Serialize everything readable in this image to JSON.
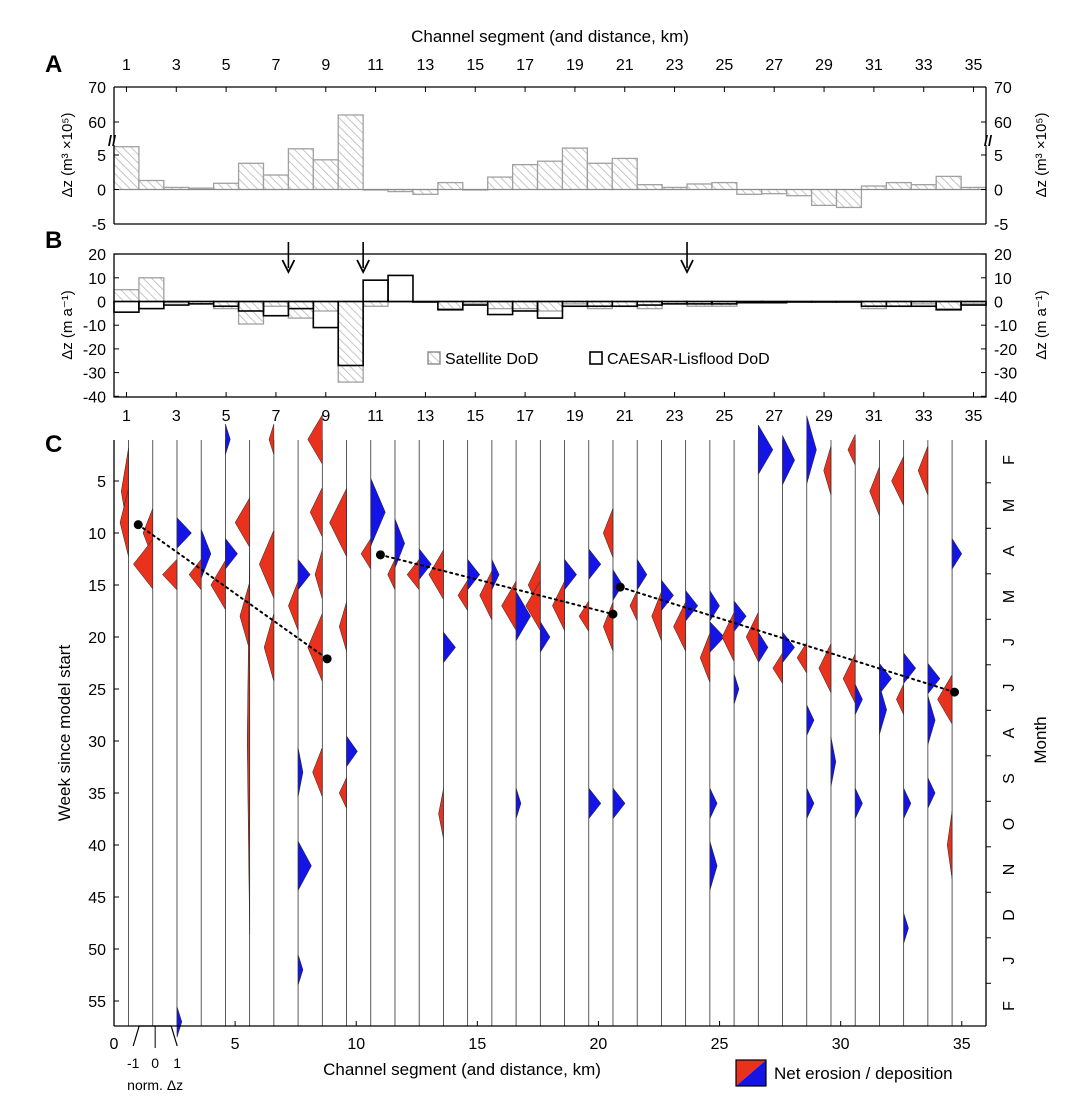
{
  "chart_data": [
    {
      "panel": "A",
      "type": "bar",
      "x_top_label": "Channel segment (and distance, km)",
      "x_ticks": [
        1,
        3,
        5,
        7,
        9,
        11,
        13,
        15,
        17,
        19,
        21,
        23,
        25,
        27,
        29,
        31,
        33,
        35
      ],
      "ylabel_left": "Δz (m³ ×10⁵)",
      "ylabel_right": "Δz (m³ ×10⁵)",
      "y_ticks": [
        "-5",
        "0",
        "5",
        "60",
        "70"
      ],
      "axis_break": true,
      "categories": [
        1,
        2,
        3,
        4,
        5,
        6,
        7,
        8,
        9,
        10,
        11,
        12,
        13,
        14,
        15,
        16,
        17,
        18,
        19,
        20,
        21,
        22,
        23,
        24,
        25,
        26,
        27,
        28,
        29,
        30,
        31,
        32,
        33,
        34,
        35
      ],
      "values": [
        6.2,
        1.3,
        0.3,
        0.2,
        0.9,
        3.8,
        2.1,
        5.9,
        4.3,
        62,
        0,
        -0.3,
        -0.7,
        1,
        0,
        1.8,
        3.6,
        4.1,
        6,
        3.8,
        4.5,
        0.7,
        0.3,
        0.8,
        1,
        -0.7,
        -0.6,
        -0.9,
        -2.3,
        -2.6,
        0.5,
        1,
        0.7,
        1.9,
        0.3
      ],
      "legend": [
        "Satellite DoD"
      ]
    },
    {
      "panel": "B",
      "type": "bar",
      "x_bottom_ticks": [
        1,
        3,
        5,
        7,
        9,
        11,
        13,
        15,
        17,
        19,
        21,
        23,
        25,
        27,
        29,
        31,
        33,
        35
      ],
      "ylabel_left": "Δz (m a⁻¹)",
      "ylabel_right": "Δz (m a⁻¹)",
      "ylim": [
        -40,
        20
      ],
      "y_ticks": [
        "20",
        "10",
        "0",
        "-10",
        "-20",
        "-30",
        "-40"
      ],
      "arrows_at_segment": [
        7.5,
        10.5,
        23.5
      ],
      "categories": [
        1,
        2,
        3,
        4,
        5,
        6,
        7,
        8,
        9,
        10,
        11,
        12,
        13,
        14,
        15,
        16,
        17,
        18,
        19,
        20,
        21,
        22,
        23,
        24,
        25,
        26,
        27,
        28,
        29,
        30,
        31,
        32,
        33,
        34,
        35
      ],
      "series": [
        {
          "name": "Satellite DoD",
          "values": [
            5,
            10,
            -0.5,
            -1,
            -3,
            -9.5,
            -2,
            -7,
            -4,
            -34,
            -2,
            0,
            0,
            -3,
            -1,
            -3,
            -3,
            -4,
            -1,
            -3,
            -2,
            -3,
            -1,
            -2,
            -2,
            -0.5,
            0,
            0,
            0,
            0,
            -3,
            -2,
            -1,
            -3,
            -1
          ]
        },
        {
          "name": "CAESAR-Lisflood DoD",
          "values": [
            -4.5,
            -3,
            -1.5,
            -1,
            -2,
            -4,
            -6,
            -3,
            -11,
            -27,
            9,
            11,
            0,
            -3.5,
            -1.5,
            -5.5,
            -4,
            -7,
            -2,
            -2,
            -2,
            -1.5,
            -1,
            -1,
            -1,
            -0.5,
            -0.5,
            0,
            0,
            0,
            -2,
            -2,
            -2,
            -3.5,
            -1.5
          ]
        }
      ],
      "legend_position": "bottom-right"
    },
    {
      "panel": "C",
      "type": "area",
      "xlabel": "Channel segment (and distance, km)",
      "x_ticks": [
        "0",
        "5",
        "10",
        "15",
        "20",
        "25",
        "30",
        "35"
      ],
      "xlim": [
        0,
        36
      ],
      "ylabel": "Week since model start",
      "y_ticks": [
        "5",
        "10",
        "15",
        "20",
        "25",
        "30",
        "35",
        "40",
        "45",
        "50",
        "55"
      ],
      "ylim": [
        1,
        57
      ],
      "right_label": "Month",
      "months": [
        "F",
        "M",
        "A",
        "M",
        "J",
        "J",
        "A",
        "S",
        "O",
        "N",
        "D",
        "J",
        "F"
      ],
      "scale_bar": {
        "ticks": [
          "-1",
          "0",
          "1"
        ],
        "label": "norm. Δz"
      },
      "legend": [
        "Net erosion / deposition"
      ],
      "colors": {
        "erosion": "#e8321e",
        "deposition": "#1414e6"
      },
      "traces": [
        {
          "segment": 1,
          "spikes": [
            [
              6,
              -0.3,
              4
            ],
            [
              9,
              -0.35,
              3
            ]
          ]
        },
        {
          "segment": 2,
          "spikes": [
            [
              10,
              -0.4,
              2
            ],
            [
              13,
              -0.8,
              2
            ]
          ]
        },
        {
          "segment": 3,
          "spikes": [
            [
              10,
              0.6,
              1
            ],
            [
              14,
              -0.6,
              1
            ],
            [
              57,
              0.2,
              1
            ]
          ]
        },
        {
          "segment": 4,
          "spikes": [
            [
              12,
              0.4,
              2
            ],
            [
              14,
              -0.5,
              1
            ]
          ]
        },
        {
          "segment": 5,
          "spikes": [
            [
              1,
              0.2,
              1
            ],
            [
              12,
              0.5,
              1
            ],
            [
              15,
              -0.6,
              2
            ]
          ]
        },
        {
          "segment": 6,
          "spikes": [
            [
              9,
              -0.6,
              2
            ],
            [
              18,
              -0.4,
              3
            ],
            [
              30,
              -0.1,
              20
            ]
          ]
        },
        {
          "segment": 7,
          "spikes": [
            [
              1,
              -0.2,
              1
            ],
            [
              13,
              -0.6,
              3
            ],
            [
              21,
              -0.4,
              3
            ]
          ]
        },
        {
          "segment": 8,
          "spikes": [
            [
              14,
              0.5,
              1
            ],
            [
              17,
              -0.4,
              2
            ],
            [
              33,
              0.2,
              2
            ],
            [
              42,
              0.55,
              2
            ],
            [
              52,
              0.2,
              1
            ]
          ]
        },
        {
          "segment": 9,
          "spikes": [
            [
              1,
              -0.6,
              2
            ],
            [
              8,
              -0.5,
              2
            ],
            [
              14,
              -0.3,
              2
            ],
            [
              21,
              -0.6,
              3
            ],
            [
              33,
              -0.4,
              2
            ]
          ]
        },
        {
          "segment": 10,
          "spikes": [
            [
              9,
              -0.7,
              3
            ],
            [
              19,
              -0.3,
              2
            ],
            [
              31,
              0.45,
              1
            ],
            [
              35,
              -0.3,
              1
            ]
          ]
        },
        {
          "segment": 11,
          "spikes": [
            [
              8,
              0.6,
              3
            ],
            [
              12,
              -0.4,
              1
            ]
          ]
        },
        {
          "segment": 12,
          "spikes": [
            [
              11,
              0.4,
              2
            ],
            [
              14,
              -0.3,
              1
            ]
          ]
        },
        {
          "segment": 13,
          "spikes": [
            [
              13,
              0.5,
              1
            ],
            [
              14,
              -0.5,
              1
            ]
          ]
        },
        {
          "segment": 14,
          "spikes": [
            [
              14,
              -0.6,
              2
            ],
            [
              21,
              0.5,
              1
            ],
            [
              37,
              -0.2,
              2
            ]
          ]
        },
        {
          "segment": 15,
          "spikes": [
            [
              14,
              0.5,
              1
            ],
            [
              16,
              -0.4,
              1
            ]
          ]
        },
        {
          "segment": 16,
          "spikes": [
            [
              14,
              0.3,
              1
            ],
            [
              16,
              -0.5,
              2
            ]
          ]
        },
        {
          "segment": 17,
          "spikes": [
            [
              17,
              -0.6,
              2
            ],
            [
              18,
              0.6,
              2
            ],
            [
              36,
              0.2,
              1
            ]
          ]
        },
        {
          "segment": 18,
          "spikes": [
            [
              15,
              -0.5,
              2
            ],
            [
              17,
              -0.6,
              2
            ],
            [
              20,
              0.4,
              1
            ]
          ]
        },
        {
          "segment": 19,
          "spikes": [
            [
              14,
              0.5,
              1
            ],
            [
              17,
              -0.5,
              2
            ]
          ]
        },
        {
          "segment": 20,
          "spikes": [
            [
              13,
              0.5,
              1
            ],
            [
              18,
              -0.4,
              1
            ],
            [
              36,
              0.5,
              1
            ]
          ]
        },
        {
          "segment": 21,
          "spikes": [
            [
              10,
              -0.4,
              2
            ],
            [
              15,
              0.4,
              1
            ],
            [
              19,
              -0.4,
              2
            ],
            [
              36,
              0.5,
              1
            ]
          ]
        },
        {
          "segment": 22,
          "spikes": [
            [
              14,
              0.4,
              1
            ],
            [
              17,
              -0.3,
              1
            ]
          ]
        },
        {
          "segment": 23,
          "spikes": [
            [
              16,
              0.5,
              1
            ],
            [
              18,
              -0.4,
              2
            ]
          ]
        },
        {
          "segment": 24,
          "spikes": [
            [
              17,
              0.5,
              1
            ],
            [
              19,
              -0.5,
              2
            ]
          ]
        },
        {
          "segment": 25,
          "spikes": [
            [
              17,
              0.4,
              1
            ],
            [
              20,
              0.6,
              1
            ],
            [
              22,
              -0.4,
              2
            ],
            [
              36,
              0.3,
              1
            ],
            [
              42,
              0.3,
              2
            ]
          ]
        },
        {
          "segment": 26,
          "spikes": [
            [
              18,
              0.5,
              1
            ],
            [
              20,
              -0.5,
              2
            ],
            [
              25,
              0.2,
              1
            ]
          ]
        },
        {
          "segment": 27,
          "spikes": [
            [
              2,
              0.6,
              2
            ],
            [
              20,
              -0.5,
              2
            ],
            [
              21,
              0.4,
              1
            ]
          ]
        },
        {
          "segment": 28,
          "spikes": [
            [
              3,
              0.5,
              2
            ],
            [
              21,
              0.5,
              1
            ],
            [
              23,
              -0.4,
              1
            ]
          ]
        },
        {
          "segment": 29,
          "spikes": [
            [
              2,
              0.4,
              3
            ],
            [
              22,
              -0.4,
              1
            ],
            [
              28,
              0.3,
              1
            ],
            [
              36,
              0.3,
              1
            ]
          ]
        },
        {
          "segment": 30,
          "spikes": [
            [
              4,
              -0.3,
              2
            ],
            [
              23,
              -0.5,
              2
            ],
            [
              32,
              0.2,
              2
            ]
          ]
        },
        {
          "segment": 31,
          "spikes": [
            [
              2,
              -0.3,
              1
            ],
            [
              24,
              -0.5,
              2
            ],
            [
              26,
              0.3,
              1
            ],
            [
              36,
              0.3,
              1
            ]
          ]
        },
        {
          "segment": 32,
          "spikes": [
            [
              6,
              -0.4,
              2
            ],
            [
              24,
              0.5,
              1
            ],
            [
              27,
              0.3,
              2
            ]
          ]
        },
        {
          "segment": 33,
          "spikes": [
            [
              5,
              -0.5,
              2
            ],
            [
              23,
              0.5,
              1
            ],
            [
              26,
              -0.3,
              1
            ],
            [
              36,
              0.3,
              1
            ],
            [
              48,
              0.2,
              1
            ]
          ]
        },
        {
          "segment": 34,
          "spikes": [
            [
              4,
              -0.4,
              2
            ],
            [
              24,
              0.5,
              1
            ],
            [
              28,
              0.3,
              2
            ],
            [
              35,
              0.3,
              1
            ]
          ]
        },
        {
          "segment": 35,
          "spikes": [
            [
              12,
              0.4,
              1
            ],
            [
              26,
              -0.6,
              2
            ],
            [
              40,
              -0.2,
              3
            ]
          ]
        }
      ],
      "peak_lines": [
        [
          [
            1,
            9.2
          ],
          [
            8.8,
            22.1
          ]
        ],
        [
          [
            11,
            12.1
          ],
          [
            20.6,
            17.8
          ]
        ],
        [
          [
            20.9,
            15.2
          ],
          [
            34.7,
            25.3
          ]
        ]
      ]
    }
  ],
  "labels": {
    "panel_a": "A",
    "panel_b": "B",
    "panel_c": "C",
    "axis_break": "//"
  }
}
